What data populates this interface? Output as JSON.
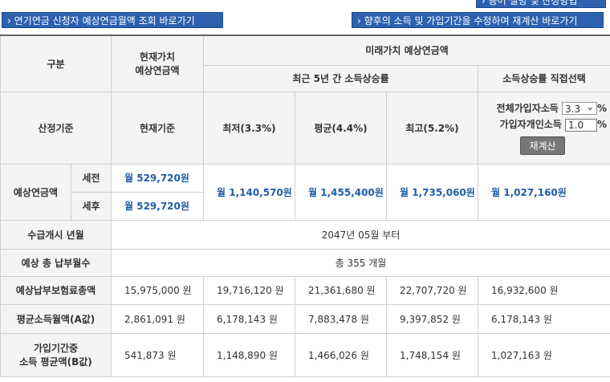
{
  "links": {
    "top": "용어 설명 및 산정방법",
    "deferred": "연기연금 신청자 예상연금월액 조회 바로가기",
    "recalc": "향후의 소득 및 가입기간을 수정하여 재계산 바로가기"
  },
  "table": {
    "header": {
      "category": "구분",
      "present": [
        "현재가치",
        "예상연금액"
      ],
      "future": "미래가치 예상연금액",
      "recent": "최근 5년 간 소득상승률",
      "direct": "소득상승률 직접선택"
    },
    "basis": {
      "label": "산정기준",
      "present": "현재기준",
      "low": "최저(3.3%)",
      "avg": "평균(4.4%)",
      "high": "최고(5.2%)",
      "total_label": "전체가입자소득",
      "total_value": "3.3",
      "personal_label": "가입자개인소득",
      "personal_value": "1.0",
      "unit": "%",
      "button": "재계산"
    },
    "pension": {
      "label": "예상연금액",
      "pre": "세전",
      "post": "세후",
      "present_pre": "월 529,720원",
      "present_post": "월 529,720원",
      "future": [
        "월 1,140,570원",
        "월 1,455,400원",
        "월 1,735,060원",
        "월 1,027,160원"
      ]
    },
    "start": {
      "label": "수급개시 년월",
      "value": "2047년 05월 부터"
    },
    "months": {
      "label": "예상 총 납부월수",
      "value": "총 355 개월"
    },
    "rows": [
      {
        "label": [
          "예상납부보험료총액"
        ],
        "values": [
          "15,975,000 원",
          "19,716,120 원",
          "21,361,680 원",
          "22,707,720 원",
          "16,932,600 원"
        ]
      },
      {
        "label": [
          "평균소득월액(A값)"
        ],
        "values": [
          "2,861,091 원",
          "6,178,143 원",
          "7,883,478 원",
          "9,397,852 원",
          "6,178,143 원"
        ]
      },
      {
        "label": [
          "가입기간중",
          "소득 평균액(B값)"
        ],
        "values": [
          "541,873 원",
          "1,148,890 원",
          "1,466,026 원",
          "1,748,154 원",
          "1,027,163 원"
        ]
      }
    ]
  }
}
